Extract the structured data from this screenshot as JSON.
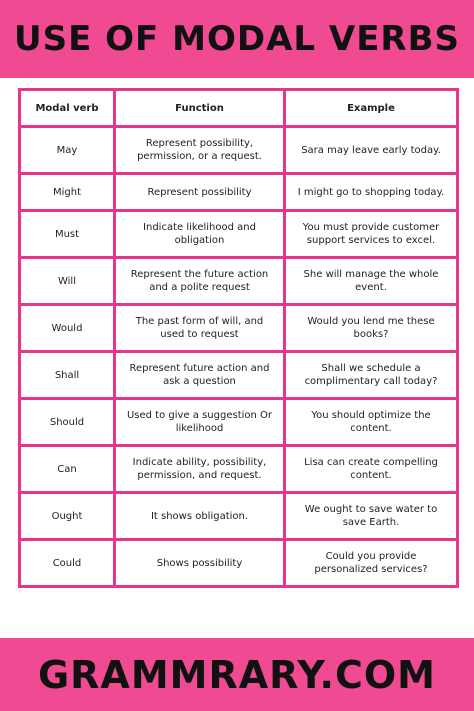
{
  "header": {
    "title": "USE OF MODAL VERBS"
  },
  "table": {
    "columns": [
      "Modal verb",
      "Function",
      "Example"
    ],
    "rows": [
      [
        "May",
        "Represent possibility, permission, or a request.",
        "Sara may leave early today."
      ],
      [
        "Might",
        "Represent possibility",
        "I might go to shopping today."
      ],
      [
        "Must",
        "Indicate likelihood and obligation",
        "You must provide customer support services to excel."
      ],
      [
        "Will",
        "Represent the future action and a polite request",
        "She will manage the whole event."
      ],
      [
        "Would",
        "The past form of will, and used to request",
        "Would you lend me these books?"
      ],
      [
        "Shall",
        "Represent future action and ask a question",
        "Shall we schedule a complimentary call today?"
      ],
      [
        "Should",
        "Used to give a suggestion Or likelihood",
        "You should optimize the content."
      ],
      [
        "Can",
        "Indicate ability, possibility, permission, and request.",
        "Lisa can create compelling content."
      ],
      [
        "Ought",
        "It shows obligation.",
        "We ought to save water to save Earth."
      ],
      [
        "Could",
        "Shows possibility",
        "Could you provide personalized services?"
      ]
    ]
  },
  "footer": {
    "text": "GRAMMRARY.COM"
  }
}
